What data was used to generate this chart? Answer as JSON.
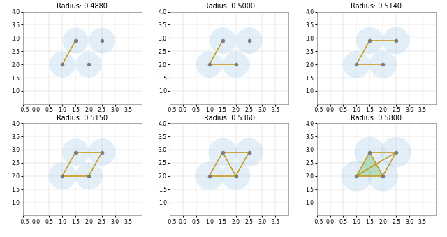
{
  "points": [
    [
      1.0,
      2.0
    ],
    [
      1.5,
      2.9
    ],
    [
      2.0,
      2.0
    ],
    [
      2.5,
      2.9
    ]
  ],
  "radii": [
    0.488,
    0.5,
    0.514,
    0.515,
    0.536,
    0.58
  ],
  "xlim": [
    -0.5,
    4.0
  ],
  "ylim": [
    0.5,
    4.0
  ],
  "xticks": [
    -0.5,
    0.0,
    0.5,
    1.0,
    1.5,
    2.0,
    2.5,
    3.0,
    3.5
  ],
  "yticks": [
    1.0,
    1.5,
    2.0,
    2.5,
    3.0,
    3.5,
    4.0
  ],
  "circle_color": "#B8D9F0",
  "circle_alpha": 0.4,
  "point_color": "#7a7a7a",
  "edge_color": "#C8960C",
  "triangle_fill_color": "#7DC77D",
  "triangle_fill_alpha": 0.45,
  "edge_linewidth": 1.1,
  "point_size": 12,
  "title_fontsize": 7,
  "tick_fontsize": 5.5,
  "figsize": [
    6.4,
    3.39
  ],
  "dpi": 100,
  "edges_per_frame": [
    [
      [
        0,
        1
      ]
    ],
    [
      [
        0,
        1
      ],
      [
        0,
        2
      ]
    ],
    [
      [
        0,
        1
      ],
      [
        0,
        2
      ],
      [
        1,
        3
      ]
    ],
    [
      [
        0,
        1
      ],
      [
        0,
        2
      ],
      [
        1,
        3
      ],
      [
        2,
        3
      ]
    ],
    [
      [
        0,
        1
      ],
      [
        0,
        2
      ],
      [
        1,
        3
      ],
      [
        2,
        3
      ],
      [
        1,
        2
      ]
    ],
    [
      [
        0,
        1
      ],
      [
        0,
        2
      ],
      [
        1,
        3
      ],
      [
        2,
        3
      ],
      [
        1,
        2
      ],
      [
        0,
        3
      ]
    ]
  ],
  "filled_triangles_per_frame": [
    [],
    [],
    [],
    [],
    [],
    [
      [
        0,
        1,
        2
      ]
    ]
  ]
}
